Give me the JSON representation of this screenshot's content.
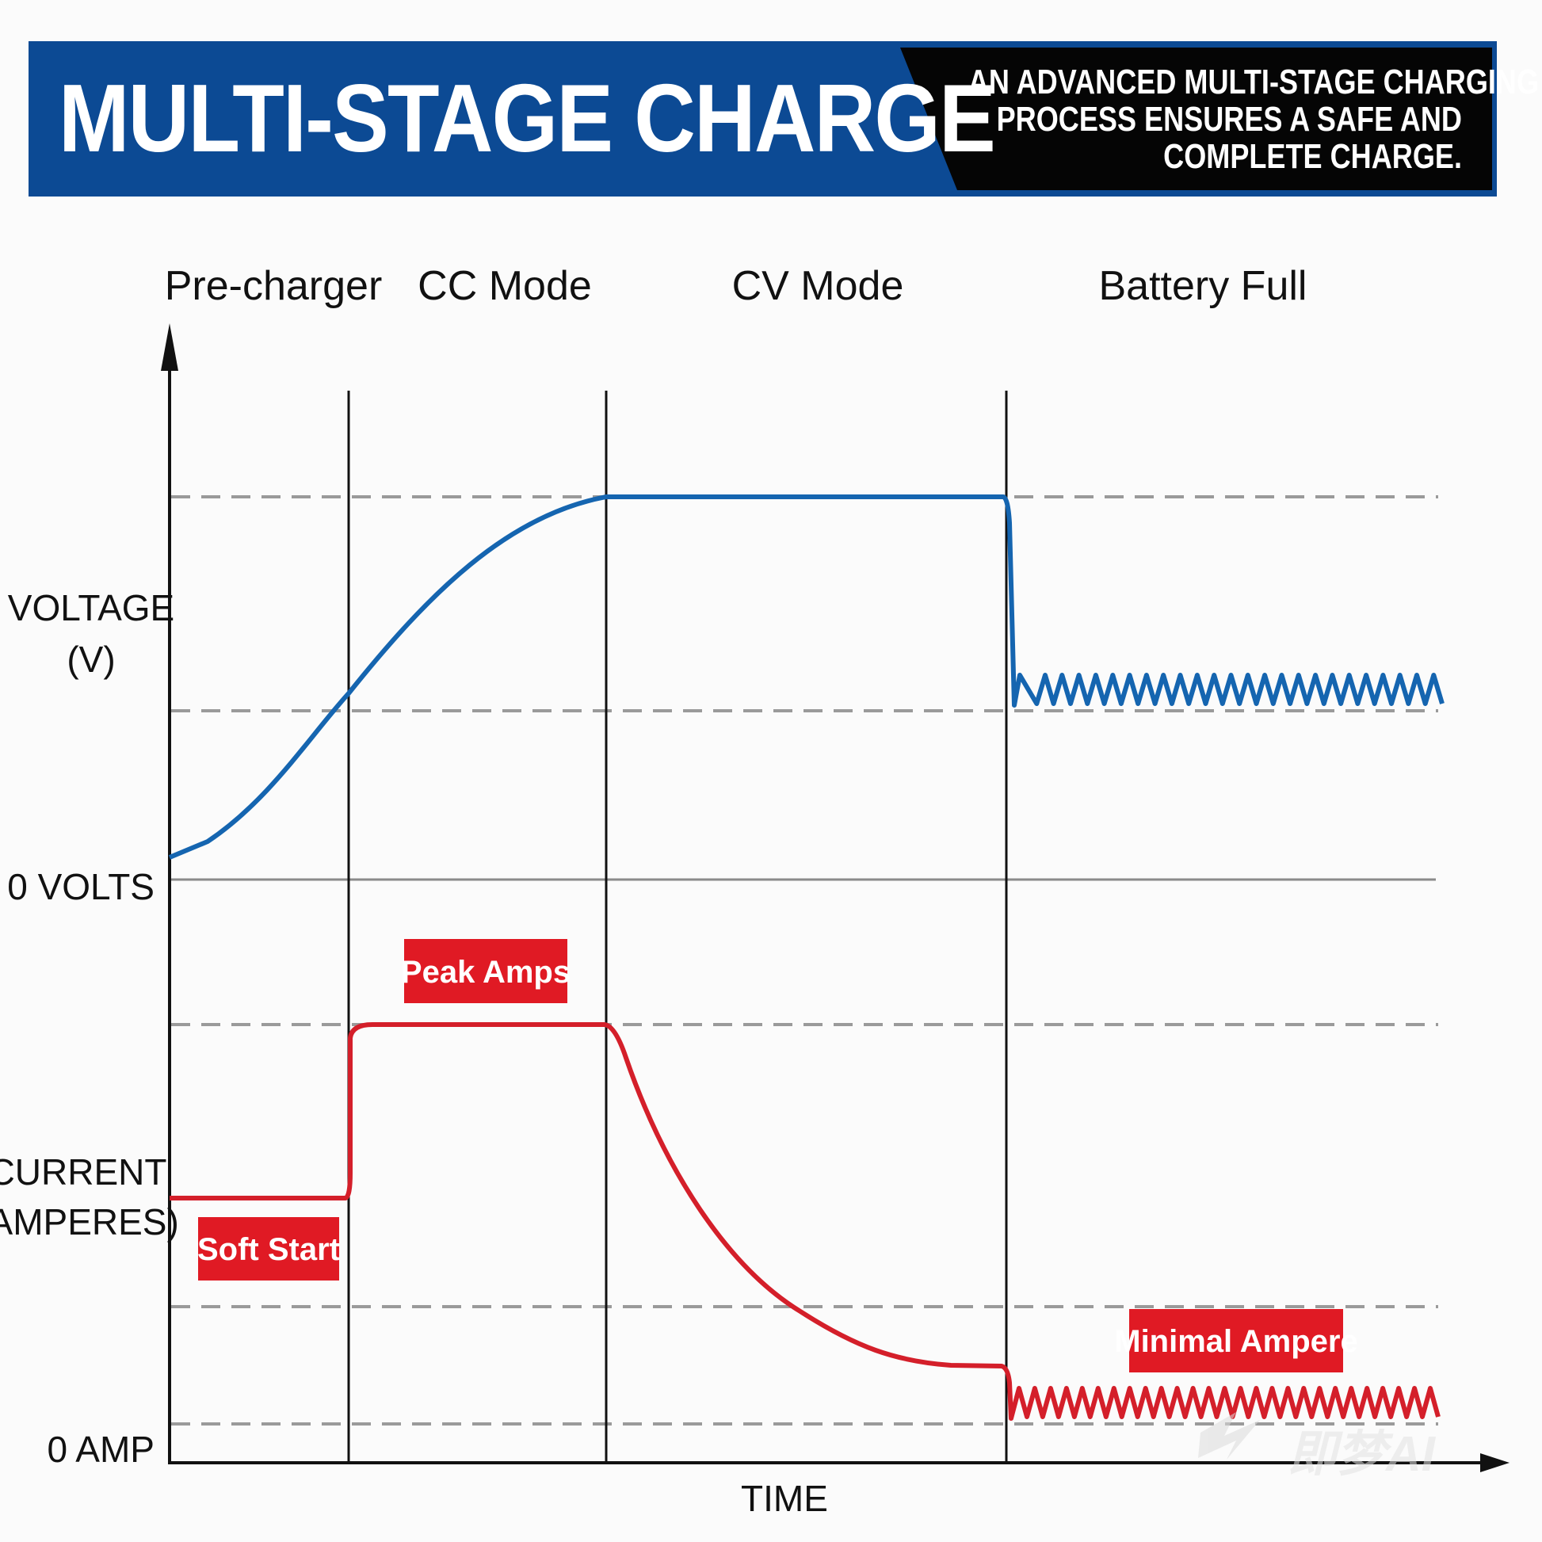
{
  "banner": {
    "title": "MULTI-STAGE CHARGE",
    "subtitle_lines": [
      "AN ADVANCED MULTI-STAGE CHARGING",
      "PROCESS ENSURES A SAFE AND",
      "COMPLETE CHARGE."
    ],
    "colors": {
      "blue": "#0c4a94",
      "black": "#050505"
    }
  },
  "chart_data": {
    "type": "line",
    "stages": [
      "Pre-charger",
      "CC Mode",
      "CV Mode",
      "Battery Full"
    ],
    "xlabel": "TIME",
    "voltage_axis": {
      "label_line1": "VOLTAGE",
      "label_line2": "(V)",
      "zero_label": "0 VOLTS"
    },
    "current_axis": {
      "label_line1": "CURRENT",
      "label_line2": "(AMPERES)",
      "zero_label": "0 AMP"
    },
    "series": [
      {
        "name": "Voltage",
        "color": "#1565b0"
      },
      {
        "name": "Current",
        "color": "#d41f2a"
      }
    ],
    "annotations": [
      "Peak Amps",
      "Soft Start",
      "Minimal Ampere"
    ],
    "tag_color": "#e01a24"
  },
  "watermark": "即梦AI"
}
